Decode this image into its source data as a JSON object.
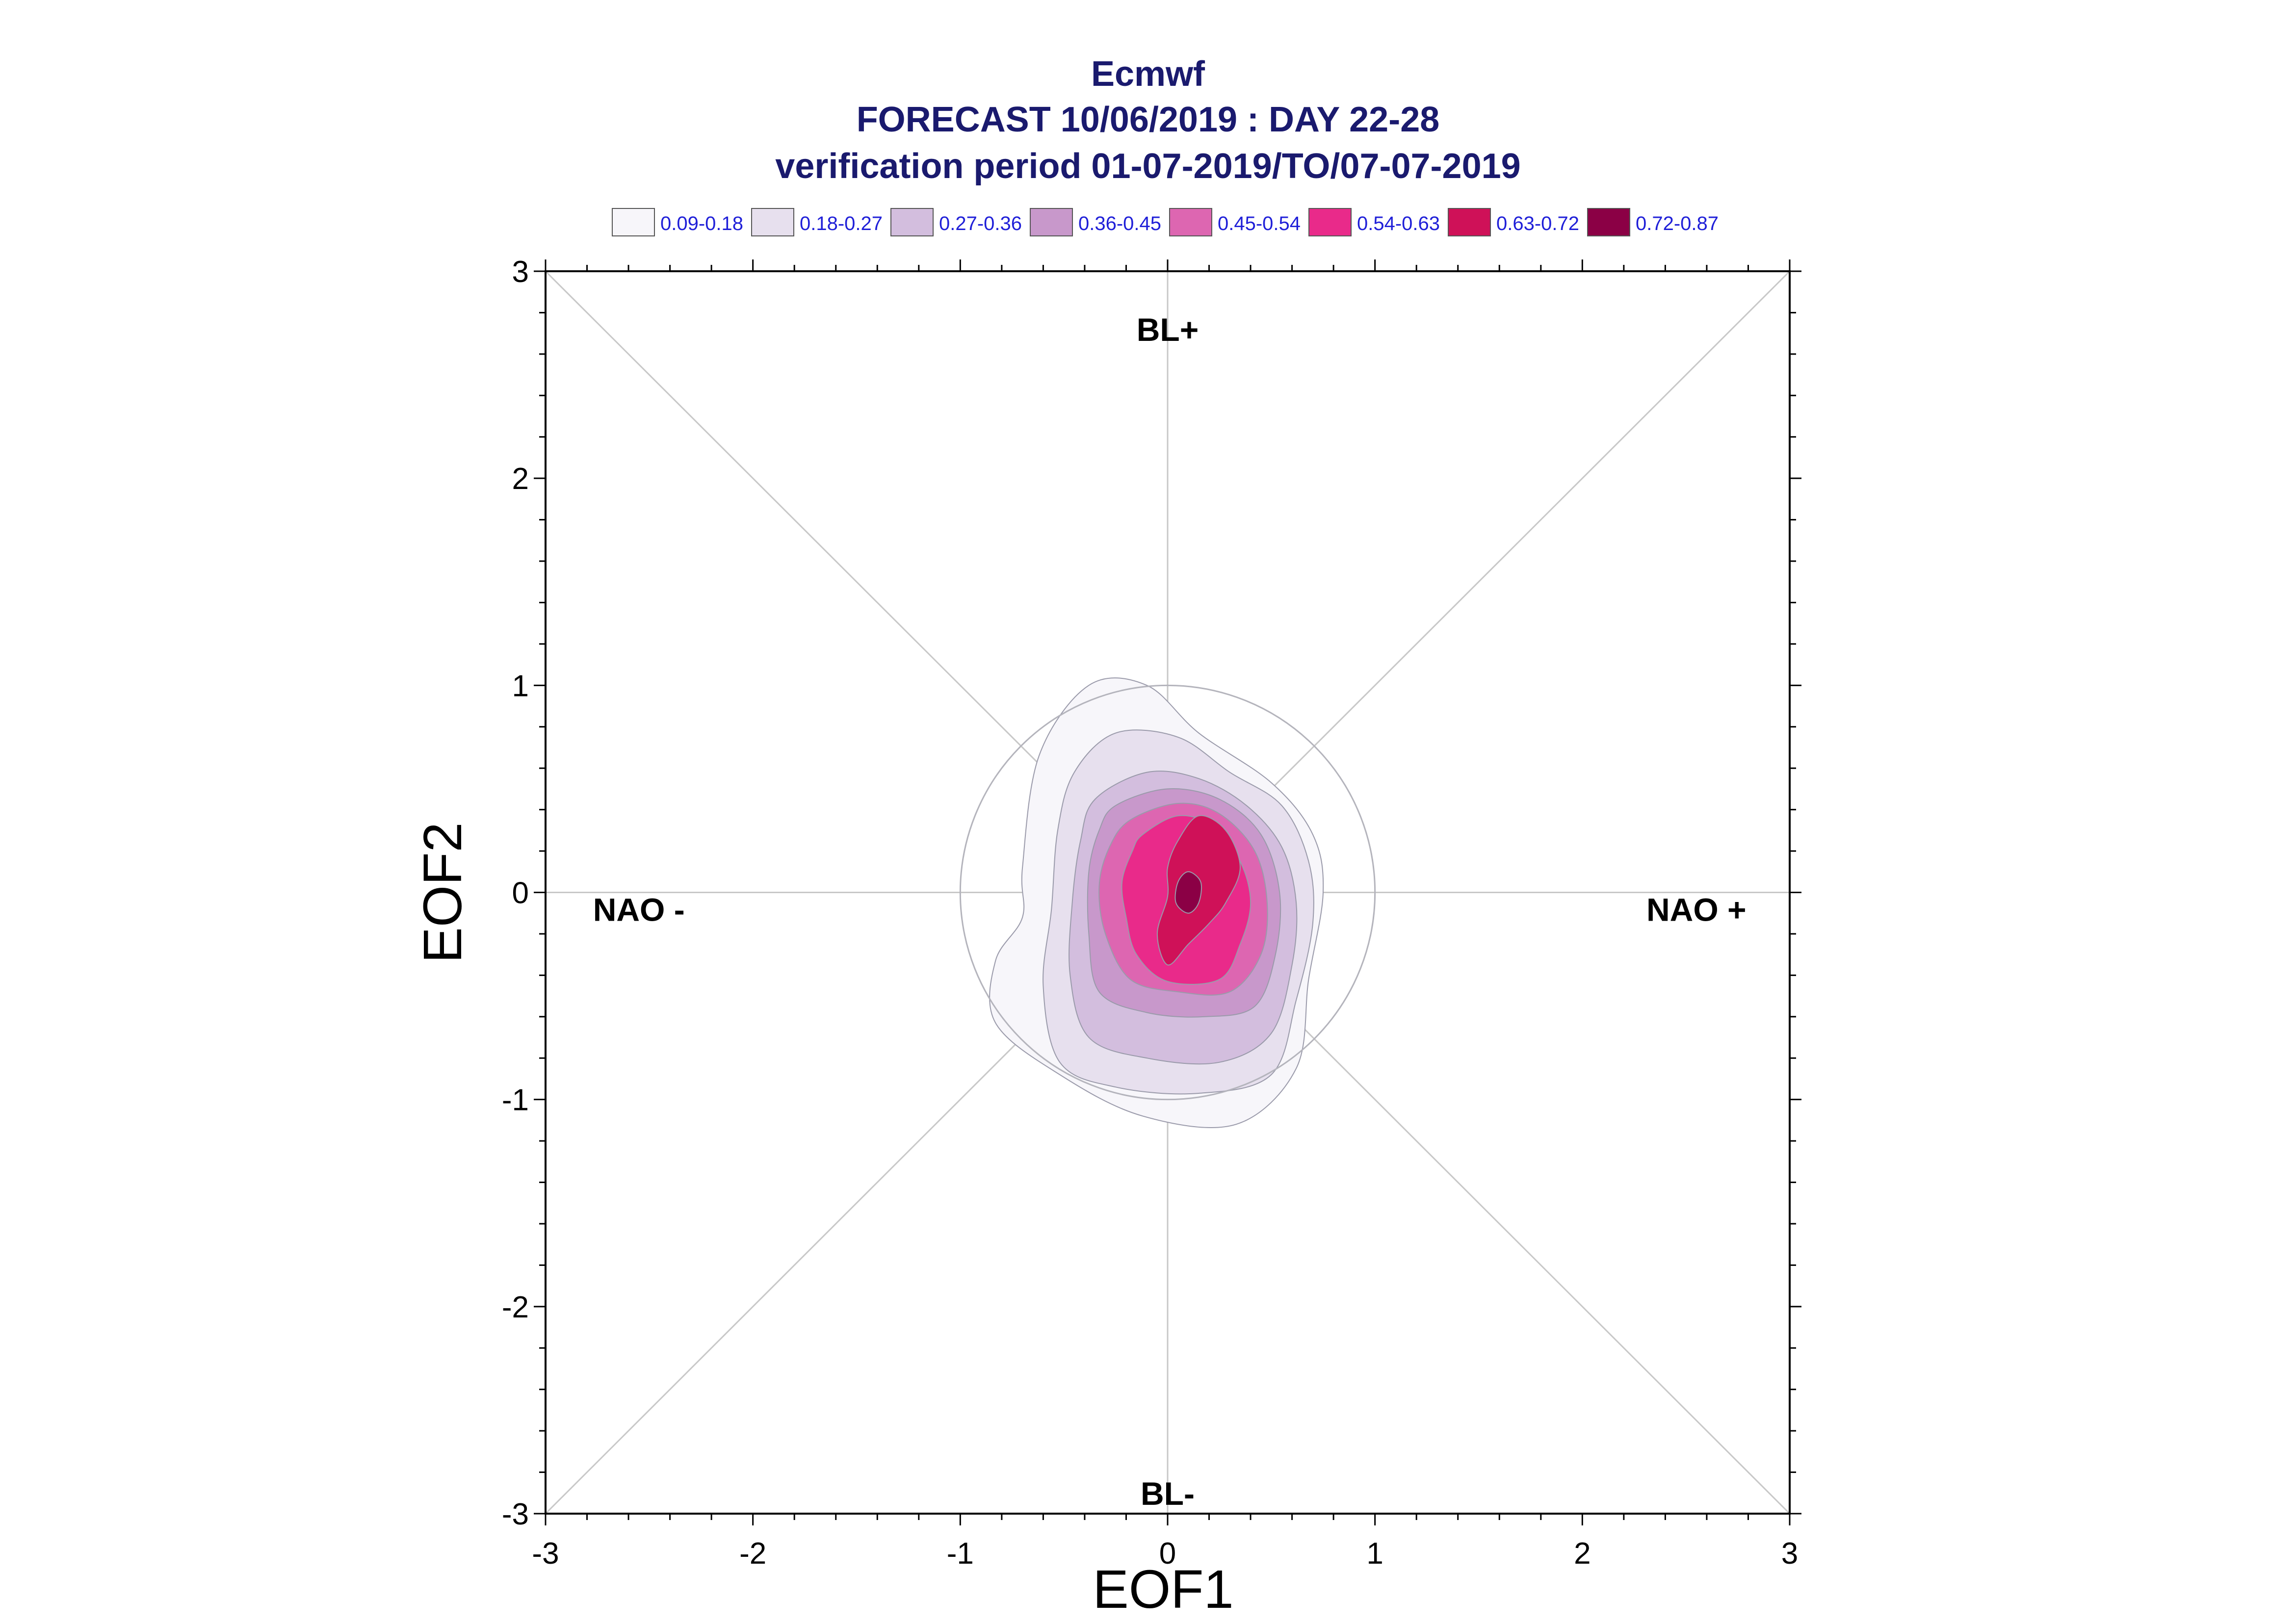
{
  "chart_data": {
    "type": "contour",
    "title": "Ecmwf",
    "subtitle_lines": [
      "FORECAST 10/06/2019 : DAY 22-28",
      "verification period 01-07-2019/TO/07-07-2019"
    ],
    "xlabel": "EOF1",
    "ylabel": "EOF2",
    "xlim": [
      -3,
      3
    ],
    "ylim": [
      -3,
      3
    ],
    "x_ticks": [
      -3,
      -2,
      -1,
      0,
      1,
      2,
      3
    ],
    "y_ticks": [
      -3,
      -2,
      -1,
      0,
      1,
      2,
      3
    ],
    "x_tick_labels": [
      "-3",
      "-2",
      "-1",
      "0",
      "1",
      "2",
      "3"
    ],
    "y_tick_labels": [
      "-3",
      "-2",
      "-1",
      "0",
      "1",
      "2",
      "3"
    ],
    "reference_circle_radius": 1,
    "regime_labels": [
      {
        "text": "BL+",
        "x": 0.0,
        "y": 2.72
      },
      {
        "text": "BL-",
        "x": 0.0,
        "y": -2.9
      },
      {
        "text": "NAO -",
        "x": -2.55,
        "y": -0.08
      },
      {
        "text": "NAO +",
        "x": 2.55,
        "y": -0.08
      }
    ],
    "legend": {
      "placement": "top",
      "levels": [
        {
          "label": "0.09-0.18",
          "color": "#f7f6fa"
        },
        {
          "label": "0.18-0.27",
          "color": "#e7e0ee"
        },
        {
          "label": "0.27-0.36",
          "color": "#d3bede"
        },
        {
          "label": "0.36-0.45",
          "color": "#c898cb"
        },
        {
          "label": "0.45-0.54",
          "color": "#dd66b1"
        },
        {
          "label": "0.54-0.63",
          "color": "#e92a8a"
        },
        {
          "label": "0.63-0.72",
          "color": "#cf1158"
        },
        {
          "label": "0.72-0.87",
          "color": "#8b0045"
        }
      ]
    },
    "contours": [
      {
        "level": "0.09-0.18",
        "points": [
          [
            -0.62,
            0.66
          ],
          [
            -0.38,
            1.0
          ],
          [
            -0.1,
            1.0
          ],
          [
            0.15,
            0.77
          ],
          [
            0.5,
            0.53
          ],
          [
            0.7,
            0.28
          ],
          [
            0.75,
            0.0
          ],
          [
            0.68,
            -0.42
          ],
          [
            0.62,
            -0.85
          ],
          [
            0.33,
            -1.12
          ],
          [
            -0.12,
            -1.08
          ],
          [
            -0.52,
            -0.88
          ],
          [
            -0.83,
            -0.63
          ],
          [
            -0.83,
            -0.33
          ],
          [
            -0.7,
            -0.12
          ],
          [
            -0.7,
            0.12
          ]
        ]
      },
      {
        "level": "0.18-0.27",
        "points": [
          [
            -0.45,
            0.58
          ],
          [
            -0.25,
            0.77
          ],
          [
            0.05,
            0.75
          ],
          [
            0.3,
            0.58
          ],
          [
            0.55,
            0.42
          ],
          [
            0.68,
            0.15
          ],
          [
            0.7,
            -0.15
          ],
          [
            0.62,
            -0.52
          ],
          [
            0.5,
            -0.88
          ],
          [
            0.15,
            -0.97
          ],
          [
            -0.25,
            -0.94
          ],
          [
            -0.52,
            -0.82
          ],
          [
            -0.6,
            -0.45
          ],
          [
            -0.56,
            -0.08
          ],
          [
            -0.53,
            0.3
          ]
        ]
      },
      {
        "level": "0.27-0.36",
        "points": [
          [
            -0.35,
            0.45
          ],
          [
            -0.1,
            0.58
          ],
          [
            0.15,
            0.55
          ],
          [
            0.38,
            0.42
          ],
          [
            0.55,
            0.22
          ],
          [
            0.62,
            -0.05
          ],
          [
            0.6,
            -0.35
          ],
          [
            0.5,
            -0.68
          ],
          [
            0.25,
            -0.82
          ],
          [
            -0.1,
            -0.8
          ],
          [
            -0.38,
            -0.7
          ],
          [
            -0.47,
            -0.4
          ],
          [
            -0.46,
            -0.05
          ],
          [
            -0.42,
            0.25
          ]
        ]
      },
      {
        "level": "0.36-0.45",
        "points": [
          [
            -0.25,
            0.42
          ],
          [
            0.0,
            0.5
          ],
          [
            0.25,
            0.45
          ],
          [
            0.45,
            0.28
          ],
          [
            0.54,
            0.0
          ],
          [
            0.52,
            -0.3
          ],
          [
            0.42,
            -0.55
          ],
          [
            0.18,
            -0.6
          ],
          [
            -0.1,
            -0.58
          ],
          [
            -0.33,
            -0.48
          ],
          [
            -0.38,
            -0.2
          ],
          [
            -0.38,
            0.1
          ],
          [
            -0.33,
            0.3
          ]
        ]
      },
      {
        "level": "0.45-0.54",
        "points": [
          [
            -0.18,
            0.35
          ],
          [
            0.05,
            0.43
          ],
          [
            0.25,
            0.38
          ],
          [
            0.42,
            0.2
          ],
          [
            0.48,
            -0.05
          ],
          [
            0.45,
            -0.3
          ],
          [
            0.3,
            -0.48
          ],
          [
            0.05,
            -0.48
          ],
          [
            -0.18,
            -0.42
          ],
          [
            -0.3,
            -0.2
          ],
          [
            -0.33,
            0.03
          ],
          [
            -0.28,
            0.22
          ]
        ]
      },
      {
        "level": "0.54-0.63",
        "points": [
          [
            -0.12,
            0.28
          ],
          [
            0.05,
            0.37
          ],
          [
            0.22,
            0.32
          ],
          [
            0.35,
            0.15
          ],
          [
            0.4,
            -0.05
          ],
          [
            0.35,
            -0.25
          ],
          [
            0.25,
            -0.42
          ],
          [
            0.0,
            -0.43
          ],
          [
            -0.15,
            -0.3
          ],
          [
            -0.2,
            -0.12
          ],
          [
            -0.22,
            0.05
          ],
          [
            -0.17,
            0.2
          ]
        ]
      },
      {
        "level": "0.63-0.72",
        "points": [
          [
            0.05,
            0.25
          ],
          [
            0.15,
            0.37
          ],
          [
            0.28,
            0.3
          ],
          [
            0.35,
            0.12
          ],
          [
            0.28,
            -0.05
          ],
          [
            0.2,
            -0.15
          ],
          [
            0.1,
            -0.25
          ],
          [
            0.0,
            -0.35
          ],
          [
            -0.05,
            -0.2
          ],
          [
            0.0,
            -0.02
          ],
          [
            0.0,
            0.12
          ]
        ]
      },
      {
        "level": "0.72-0.87",
        "points": [
          [
            0.05,
            0.05
          ],
          [
            0.1,
            0.1
          ],
          [
            0.16,
            0.05
          ],
          [
            0.15,
            -0.05
          ],
          [
            0.1,
            -0.1
          ],
          [
            0.04,
            -0.05
          ]
        ]
      }
    ]
  }
}
